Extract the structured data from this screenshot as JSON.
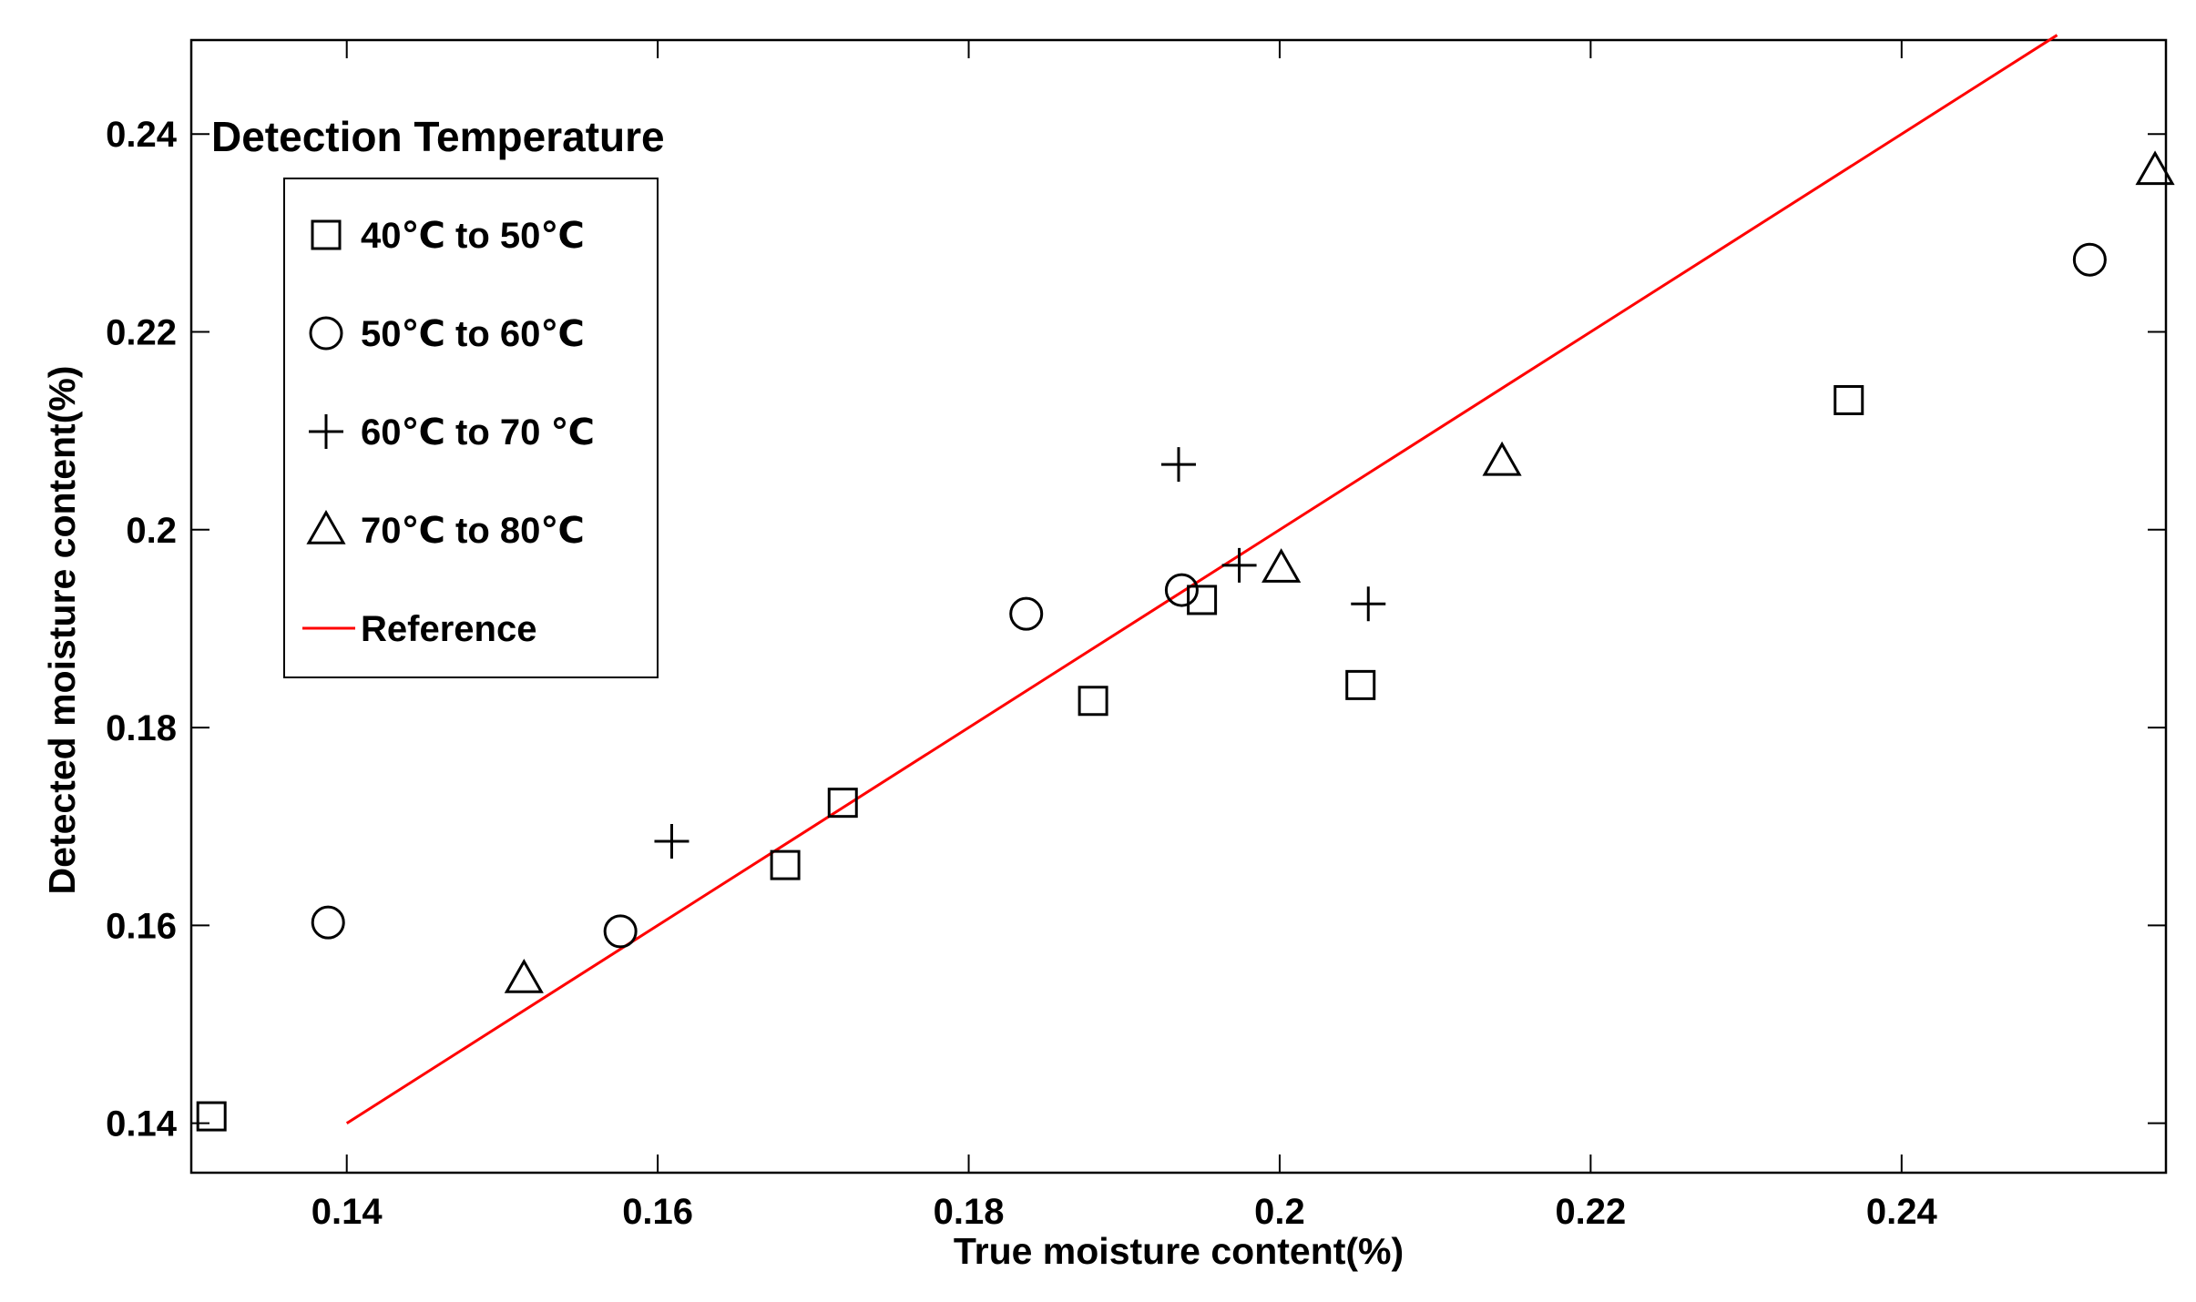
{
  "chart_data": {
    "type": "scatter",
    "title": "",
    "xlabel": "True moisture content(%)",
    "ylabel": "Detected moisture content(%)",
    "xlim": [
      0.13,
      0.257
    ],
    "ylim": [
      0.135,
      0.2495
    ],
    "x_ticks": [
      0.14,
      0.16,
      0.18,
      0.2,
      0.22,
      0.24
    ],
    "x_tick_labels": [
      "0.14",
      "0.16",
      "0.18",
      "0.2",
      "0.22",
      "0.24"
    ],
    "y_ticks": [
      0.14,
      0.16,
      0.18,
      0.2,
      0.22,
      0.24
    ],
    "y_tick_labels": [
      "0.14",
      "0.16",
      "0.18",
      "0.2",
      "0.22",
      "0.24"
    ],
    "grid": false,
    "legend": {
      "title": "Detection Temperature",
      "placement": "top-left"
    },
    "series": [
      {
        "name": "40℃ to 50℃",
        "marker": "square",
        "color": "#000000",
        "points": [
          [
            0.1313,
            0.1407
          ],
          [
            0.1682,
            0.1661
          ],
          [
            0.1719,
            0.1724
          ],
          [
            0.188,
            0.1827
          ],
          [
            0.195,
            0.1929
          ],
          [
            0.2052,
            0.1843
          ],
          [
            0.2366,
            0.2131
          ]
        ]
      },
      {
        "name": "50℃ to 60℃",
        "marker": "circle",
        "color": "#000000",
        "points": [
          [
            0.1388,
            0.1603
          ],
          [
            0.1576,
            0.1594
          ],
          [
            0.1837,
            0.1915
          ],
          [
            0.1937,
            0.1939
          ],
          [
            0.2521,
            0.2273
          ]
        ]
      },
      {
        "name": "60℃ to 70 ℃",
        "marker": "plus",
        "color": "#000000",
        "points": [
          [
            0.1609,
            0.1685
          ],
          [
            0.1935,
            0.2066
          ],
          [
            0.1974,
            0.1964
          ],
          [
            0.2057,
            0.1925
          ]
        ]
      },
      {
        "name": "70℃ to 80℃",
        "marker": "triangle",
        "color": "#000000",
        "points": [
          [
            0.1514,
            0.1546
          ],
          [
            0.2001,
            0.1961
          ],
          [
            0.2143,
            0.2069
          ],
          [
            0.2563,
            0.2363
          ]
        ]
      },
      {
        "name": "Reference",
        "marker": "line",
        "color": "#ff0000",
        "points": [
          [
            0.14,
            0.14
          ],
          [
            0.25,
            0.25
          ]
        ]
      }
    ]
  }
}
